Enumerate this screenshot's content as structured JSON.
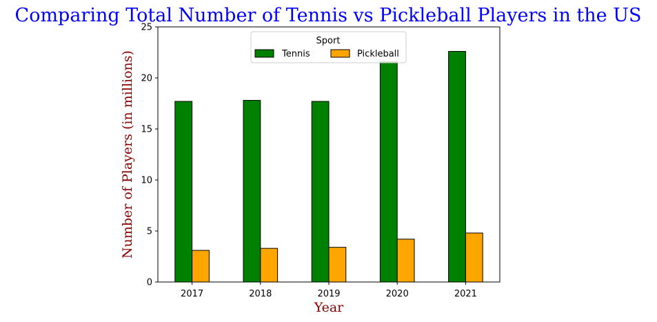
{
  "chart_data": {
    "type": "bar",
    "title": "Comparing Total Number of Tennis vs Pickleball Players in the US",
    "xlabel": "Year",
    "ylabel": "Number of Players (in millions)",
    "categories": [
      "2017",
      "2018",
      "2019",
      "2020",
      "2021"
    ],
    "series": [
      {
        "name": "Tennis",
        "values": [
          17.7,
          17.8,
          17.7,
          21.6,
          22.6
        ],
        "color": "#008000"
      },
      {
        "name": "Pickleball",
        "values": [
          3.1,
          3.3,
          3.4,
          4.2,
          4.8
        ],
        "color": "#ffa500"
      }
    ],
    "ylim": [
      0,
      25
    ],
    "yticks": [
      "0",
      "5",
      "10",
      "15",
      "20",
      "25"
    ],
    "legend": {
      "title": "Sport",
      "placement": "upper-center",
      "columns": 2
    },
    "grid": false,
    "bar_edge_color": "#000000"
  }
}
